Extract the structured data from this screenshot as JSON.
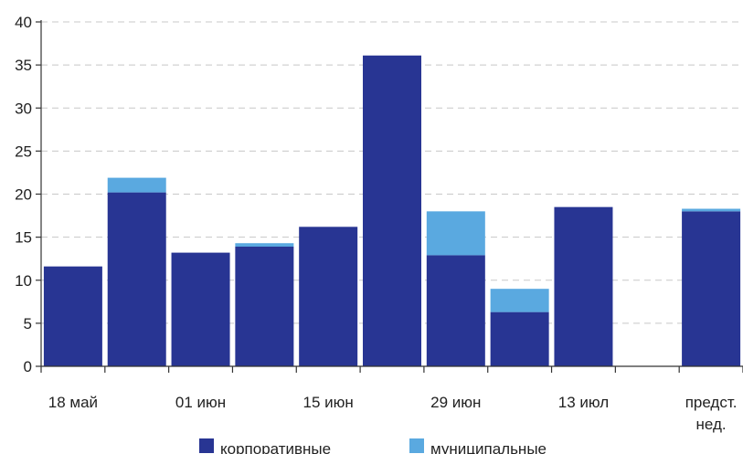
{
  "chart_data": {
    "type": "bar",
    "stacked": true,
    "categories": [
      "18 май",
      "",
      "01 июн",
      "",
      "15 июн",
      "",
      "29 июн",
      "",
      "13 июл",
      "",
      "предст.\nнед."
    ],
    "series": [
      {
        "name": "корпоративные",
        "color": "#283593",
        "values": [
          11.6,
          20.2,
          13.2,
          13.9,
          16.2,
          36.1,
          12.9,
          6.3,
          18.5,
          0,
          18.0
        ]
      },
      {
        "name": "муниципальные",
        "color": "#5aa9e0",
        "values": [
          0,
          1.7,
          0,
          0.4,
          0,
          0,
          5.1,
          2.7,
          0,
          0,
          0.3
        ]
      }
    ],
    "ylim": [
      0,
      40
    ],
    "yticks": [
      0,
      5,
      10,
      15,
      20,
      25,
      30,
      35,
      40
    ],
    "grid": true,
    "legend": "bottom"
  }
}
